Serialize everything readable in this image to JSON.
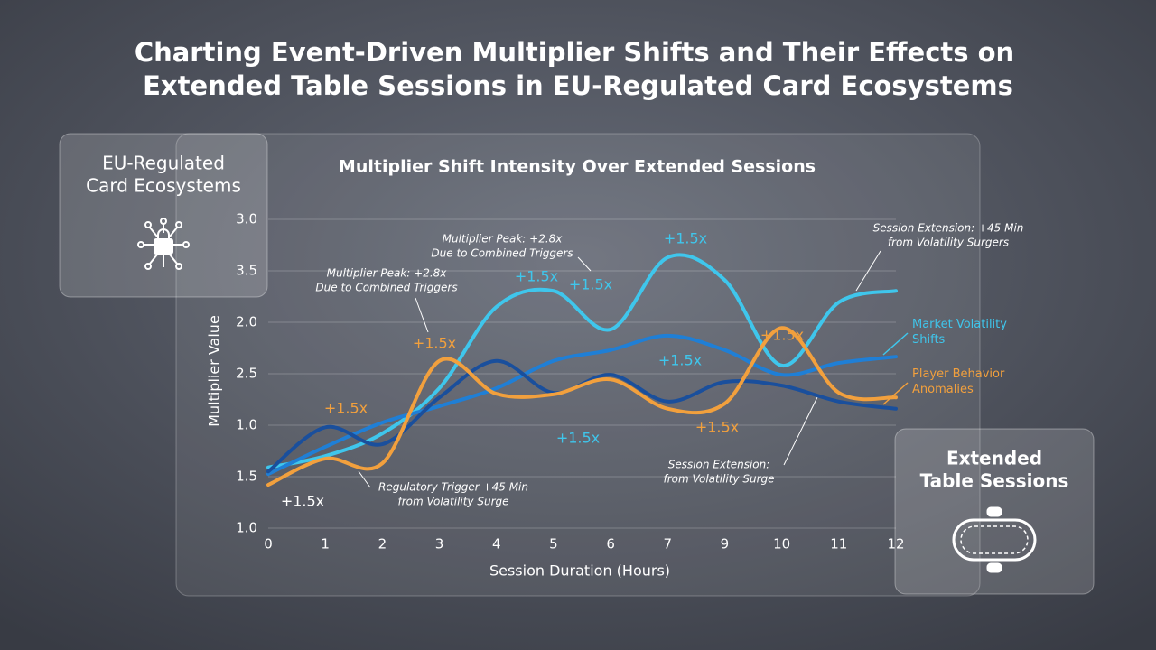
{
  "title": [
    "Charting Event-Driven Multiplier Shifts and Their Effects on",
    "Extended Table Sessions in EU-Regulated Card Ecosystems"
  ],
  "left_card": {
    "lines": [
      "EU-Regulated",
      "Card Ecosystems"
    ]
  },
  "right_card": {
    "lines": [
      "Extended",
      "Table Sessions"
    ]
  },
  "chart_data": {
    "type": "line",
    "title": "Multiplier Shift Intensity Over Extended Sessions",
    "x_label": "Session Duration (Hours)",
    "y_label": "Multiplier Value",
    "categories": [
      "0",
      "1",
      "2",
      "3",
      "4",
      "5",
      "6",
      "7",
      "9",
      "10",
      "11",
      "12"
    ],
    "ylim": [
      0,
      6
    ],
    "yticks": [
      {
        "value": 0,
        "label": "1.0"
      },
      {
        "value": 1,
        "label": "1.5"
      },
      {
        "value": 2,
        "label": "1.0"
      },
      {
        "value": 3,
        "label": "2.5"
      },
      {
        "value": 4,
        "label": "2.0"
      },
      {
        "value": 5,
        "label": "3.5"
      },
      {
        "value": 6,
        "label": "3.0"
      }
    ],
    "grid": true,
    "series": [
      {
        "name": "Market Volatility Shifts",
        "color": "#3fc6ec",
        "values": [
          1.18,
          1.4,
          1.84,
          2.72,
          4.3,
          4.61,
          3.86,
          5.26,
          4.82,
          3.16,
          4.39,
          4.61
        ]
      },
      {
        "color": "#1f7fd6",
        "values": [
          1.05,
          1.58,
          2.05,
          2.37,
          2.72,
          3.25,
          3.46,
          3.74,
          3.46,
          2.98,
          3.21,
          3.33
        ]
      },
      {
        "color": "#1a4f9c",
        "values": [
          1.1,
          1.96,
          1.63,
          2.54,
          3.25,
          2.63,
          2.98,
          2.46,
          2.84,
          2.77,
          2.46,
          2.32
        ]
      },
      {
        "name": "Player Behavior Anomalies",
        "color": "#f2a03d",
        "values": [
          0.84,
          1.35,
          1.26,
          3.25,
          2.61,
          2.6,
          2.89,
          2.32,
          2.42,
          3.89,
          2.63,
          2.54
        ]
      }
    ],
    "annotations": [
      {
        "lines": [
          "+1.5x"
        ],
        "color": "#ffffff"
      },
      {
        "lines": [
          "+1.5x"
        ],
        "color": "#f2a03d"
      },
      {
        "lines": [
          "+1.5x"
        ],
        "color": "#f2a03d"
      },
      {
        "lines": [
          "+1.5x"
        ],
        "color": "#3fc6ec"
      },
      {
        "lines": [
          "+1.5x"
        ],
        "color": "#3fc6ec"
      },
      {
        "lines": [
          "+1.5x"
        ],
        "color": "#3fc6ec"
      },
      {
        "lines": [
          "+1.5x"
        ],
        "color": "#3fc6ec"
      },
      {
        "lines": [
          "+1.5x"
        ],
        "color": "#3fc6ec"
      },
      {
        "lines": [
          "+1.5x"
        ],
        "color": "#f2a03d"
      },
      {
        "lines": [
          "+1.5x"
        ],
        "color": "#f2a03d"
      },
      {
        "lines": [
          "Multiplier Peak: +2.8x",
          "Due to Combined Triggers"
        ],
        "color": "#ffffff"
      },
      {
        "lines": [
          "Multiplier Peak: +2.8x",
          "Due to Combined Triggers"
        ],
        "color": "#ffffff"
      },
      {
        "lines": [
          "Session Extension: +45 Min",
          "from Volatility Surgers"
        ],
        "color": "#ffffff"
      },
      {
        "lines": [
          "Regulatory Trigger +45 Min",
          "from Volatility Surge"
        ],
        "color": "#ffffff"
      },
      {
        "lines": [
          "Session Extension:",
          "from Volatility Surge"
        ],
        "color": "#ffffff"
      }
    ]
  }
}
